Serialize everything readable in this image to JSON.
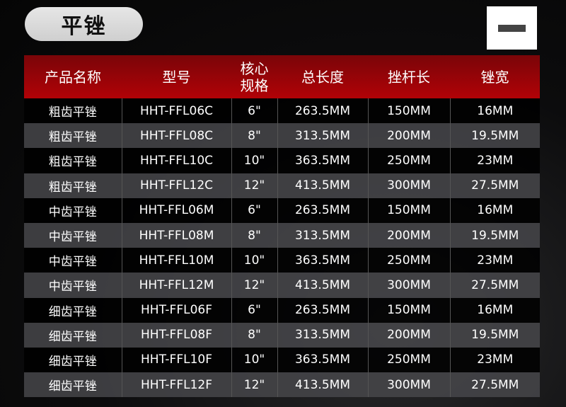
{
  "title": "平锉",
  "icon": "minus-icon",
  "colors": {
    "header": "#b10207",
    "pill": "#dcdcdc"
  },
  "headers": [
    "产品名称",
    "型号",
    "核心\n规格",
    "总长度",
    "挫杆长",
    "锉宽"
  ],
  "rows": [
    [
      "粗齿平锉",
      "HHT-FFL06C",
      "6\"",
      "263.5MM",
      "150MM",
      "16MM"
    ],
    [
      "粗齿平锉",
      "HHT-FFL08C",
      "8\"",
      "313.5MM",
      "200MM",
      "19.5MM"
    ],
    [
      "粗齿平锉",
      "HHT-FFL10C",
      "10\"",
      "363.5MM",
      "250MM",
      "23MM"
    ],
    [
      "粗齿平锉",
      "HHT-FFL12C",
      "12\"",
      "413.5MM",
      "300MM",
      "27.5MM"
    ],
    [
      "中齿平锉",
      "HHT-FFL06M",
      "6\"",
      "263.5MM",
      "150MM",
      "16MM"
    ],
    [
      "中齿平锉",
      "HHT-FFL08M",
      "8\"",
      "313.5MM",
      "200MM",
      "19.5MM"
    ],
    [
      "中齿平锉",
      "HHT-FFL10M",
      "10\"",
      "363.5MM",
      "250MM",
      "23MM"
    ],
    [
      "中齿平锉",
      "HHT-FFL12M",
      "12\"",
      "413.5MM",
      "300MM",
      "27.5MM"
    ],
    [
      "细齿平锉",
      "HHT-FFL06F",
      "6\"",
      "263.5MM",
      "150MM",
      "16MM"
    ],
    [
      "细齿平锉",
      "HHT-FFL08F",
      "8\"",
      "313.5MM",
      "200MM",
      "19.5MM"
    ],
    [
      "细齿平锉",
      "HHT-FFL10F",
      "10\"",
      "363.5MM",
      "250MM",
      "23MM"
    ],
    [
      "细齿平锉",
      "HHT-FFL12F",
      "12\"",
      "413.5MM",
      "300MM",
      "27.5MM"
    ]
  ]
}
